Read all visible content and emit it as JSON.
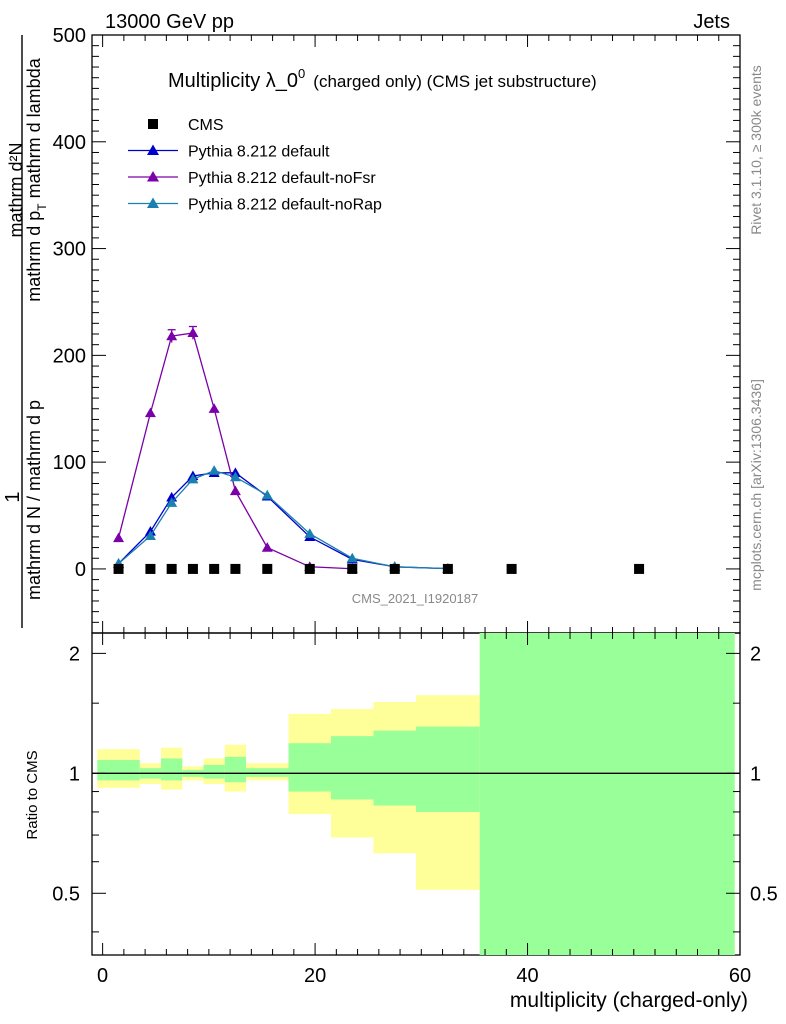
{
  "header": {
    "left": "13000 GeV pp",
    "right": "Jets"
  },
  "side_labels": {
    "rivet": "Rivet 3.1.10, ≥ 300k events",
    "mcplots": "mcplots.cern.ch [arXiv:1306.3436]"
  },
  "watermark": "CMS_2021_I1920187",
  "chart_data": {
    "type": "line",
    "title": "Multiplicity λ_0",
    "title_sup": "0",
    "title_suffix": "(charged only) (CMS jet substructure)",
    "xlabel": "multiplicity (charged-only)",
    "ylabel_num": "1",
    "ylabel_den": "mathrm d N / mathrm d p",
    "ylabel_top": "mathrm d²N",
    "ylabel_bot": "mathrm d p",
    "ylabel_bot_sub": "T",
    "ylabel_bot_rest": "mathrm d lambda",
    "xlim": [
      -1,
      60
    ],
    "ylim": [
      -60,
      500
    ],
    "x_ticks": [
      "0",
      "20",
      "40",
      "60"
    ],
    "y_ticks": [
      "0",
      "100",
      "200",
      "300",
      "400",
      "500"
    ],
    "legend": [
      {
        "label": "CMS",
        "color": "#000000",
        "marker": "square"
      },
      {
        "label": "Pythia 8.212 default",
        "color": "#0000cc",
        "marker": "triangle"
      },
      {
        "label": "Pythia 8.212 default-noFsr",
        "color": "#7a00a8",
        "marker": "triangle"
      },
      {
        "label": "Pythia 8.212 default-noRap",
        "color": "#1a80b0",
        "marker": "triangle"
      }
    ],
    "cms": {
      "x": [
        1.5,
        4.5,
        6.5,
        8.5,
        10.5,
        12.5,
        15.5,
        19.5,
        23.5,
        27.5,
        32.5,
        38.5,
        50.5
      ],
      "y": [
        0,
        0,
        0,
        0,
        0,
        0,
        0,
        0,
        0,
        0,
        0,
        0,
        0
      ]
    },
    "series": [
      {
        "name": "Pythia 8.212 default",
        "color": "#0000cc",
        "x": [
          1.5,
          4.5,
          6.5,
          8.5,
          10.5,
          12.5,
          15.5,
          19.5,
          23.5,
          27.5,
          32.5
        ],
        "y": [
          5,
          35,
          67,
          87,
          90,
          90,
          68,
          30,
          9,
          2,
          0.3
        ]
      },
      {
        "name": "Pythia 8.212 default-noFsr",
        "color": "#7a00a8",
        "x": [
          1.5,
          4.5,
          6.5,
          8.5,
          10.5,
          12.5,
          15.5,
          19.5,
          23.5
        ],
        "y": [
          29,
          146,
          218,
          221,
          150,
          73,
          20,
          2,
          0.2
        ],
        "err": [
          0,
          0,
          6,
          6,
          0,
          0,
          0,
          0,
          0
        ]
      },
      {
        "name": "Pythia 8.212 default-noRap",
        "color": "#1a80b0",
        "x": [
          1.5,
          4.5,
          6.5,
          8.5,
          10.5,
          12.5,
          15.5,
          19.5,
          23.5,
          27.5,
          32.5
        ],
        "y": [
          5,
          31,
          62,
          84,
          92,
          86,
          69,
          33,
          10,
          2,
          0.3
        ]
      }
    ],
    "ratio": {
      "ylabel": "Ratio to CMS",
      "ylim": [
        0.35,
        2.25
      ],
      "y_ticks": [
        "0.5",
        "1",
        "2"
      ],
      "bin_edges": [
        -0.5,
        3.5,
        5.5,
        7.5,
        9.5,
        11.5,
        13.5,
        17.5,
        21.5,
        25.5,
        29.5,
        35.5,
        59.5
      ],
      "yellow_hi": [
        1.15,
        1.06,
        1.16,
        1.04,
        1.09,
        1.18,
        1.06,
        1.41,
        1.45,
        1.51,
        1.57,
        2.25
      ],
      "yellow_lo": [
        0.92,
        0.94,
        0.91,
        0.96,
        0.94,
        0.9,
        0.96,
        0.79,
        0.69,
        0.63,
        0.51,
        0.35
      ],
      "green_hi": [
        1.08,
        1.03,
        1.09,
        1.02,
        1.05,
        1.1,
        1.03,
        1.19,
        1.24,
        1.28,
        1.31,
        2.25
      ],
      "green_lo": [
        0.96,
        0.97,
        0.96,
        0.98,
        0.97,
        0.95,
        0.98,
        0.9,
        0.86,
        0.83,
        0.8,
        0.35
      ]
    }
  }
}
